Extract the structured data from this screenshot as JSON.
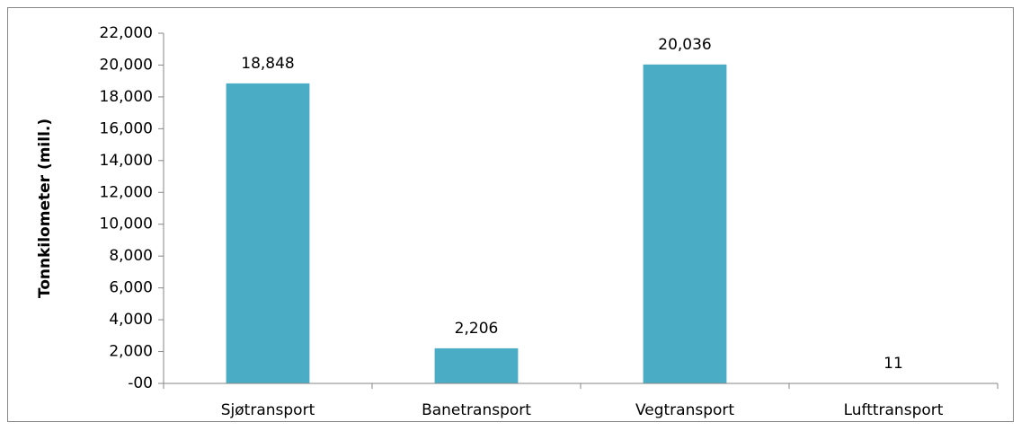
{
  "chart_data": {
    "type": "bar",
    "y_label": "Tonnkilometer (mill.)",
    "categories": [
      "Sjøtransport",
      "Banetransport",
      "Vegtransport",
      "Lufttransport"
    ],
    "values": [
      18848,
      2206,
      20036,
      11
    ],
    "value_labels": [
      "18,848",
      "2,206",
      "20,036",
      "11"
    ],
    "color": "#4bacc6",
    "ylim": [
      0,
      22000
    ],
    "yticks": [
      {
        "value": 0,
        "label": "-00"
      },
      {
        "value": 2000,
        "label": "2,000"
      },
      {
        "value": 4000,
        "label": "4,000"
      },
      {
        "value": 6000,
        "label": "6,000"
      },
      {
        "value": 8000,
        "label": "8,000"
      },
      {
        "value": 10000,
        "label": "10,000"
      },
      {
        "value": 12000,
        "label": "12,000"
      },
      {
        "value": 14000,
        "label": "14,000"
      },
      {
        "value": 16000,
        "label": "16,000"
      },
      {
        "value": 18000,
        "label": "18,000"
      },
      {
        "value": 20000,
        "label": "20,000"
      },
      {
        "value": 22000,
        "label": "22,000"
      }
    ],
    "grid": false
  }
}
